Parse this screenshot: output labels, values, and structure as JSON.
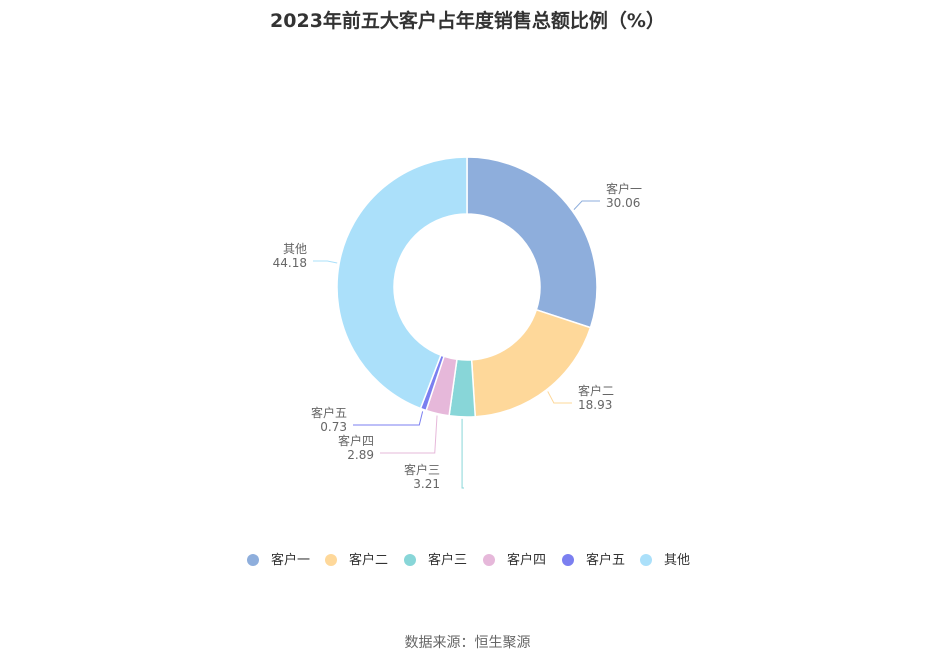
{
  "chart_data": {
    "type": "pie",
    "title": "2023年前五大客户占年度销售总额比例（%）",
    "slices": [
      {
        "label": "客户一",
        "value": 30.06,
        "color": "#8eaedc"
      },
      {
        "label": "客户二",
        "value": 18.93,
        "color": "#fed89a"
      },
      {
        "label": "客户三",
        "value": 3.21,
        "color": "#88d6d8"
      },
      {
        "label": "客户四",
        "value": 2.89,
        "color": "#e6b8da"
      },
      {
        "label": "客户五",
        "value": 0.73,
        "color": "#7b7ff0"
      },
      {
        "label": "其他",
        "value": 44.18,
        "color": "#abe0fa"
      }
    ],
    "legend_position": "bottom"
  },
  "footer": {
    "source": "数据来源：恒生聚源"
  }
}
